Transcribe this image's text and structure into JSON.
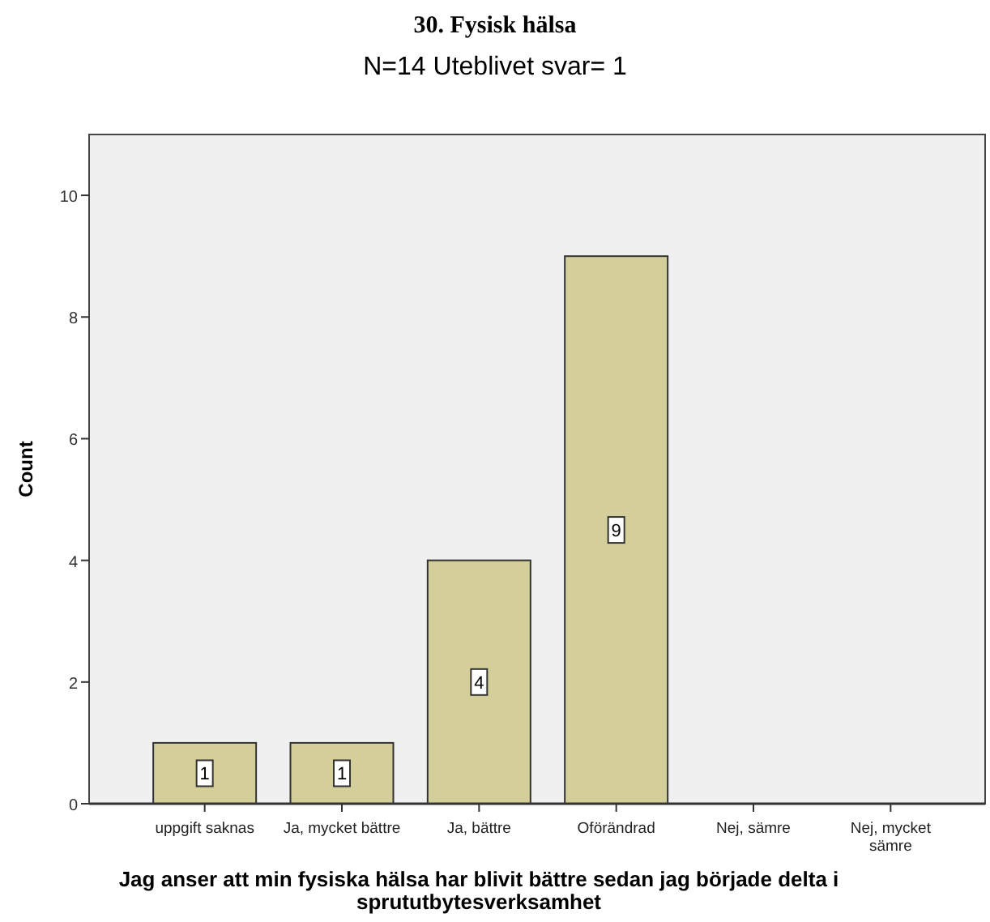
{
  "chart_data": {
    "type": "bar",
    "title": "30. Fysisk hälsa",
    "subtitle": "N=14 Uteblivet svar= 1",
    "xlabel": "Jag anser att min fysiska hälsa har blivit bättre sedan jag började delta i sprututbytesverksamhet",
    "ylabel": "Count",
    "categories": [
      "uppgift saknas",
      "Ja, mycket bättre",
      "Ja, bättre",
      "Oförändrad",
      "Nej, sämre",
      "Nej, mycket sämre"
    ],
    "values": [
      1,
      1,
      4,
      9,
      0,
      0
    ],
    "value_labels": [
      "1",
      "1",
      "4",
      "9",
      null,
      null
    ],
    "color": "#d3ce9a",
    "ylim": [
      0,
      11
    ],
    "yticks": [
      0,
      2,
      4,
      6,
      8,
      10
    ],
    "grid": false
  }
}
